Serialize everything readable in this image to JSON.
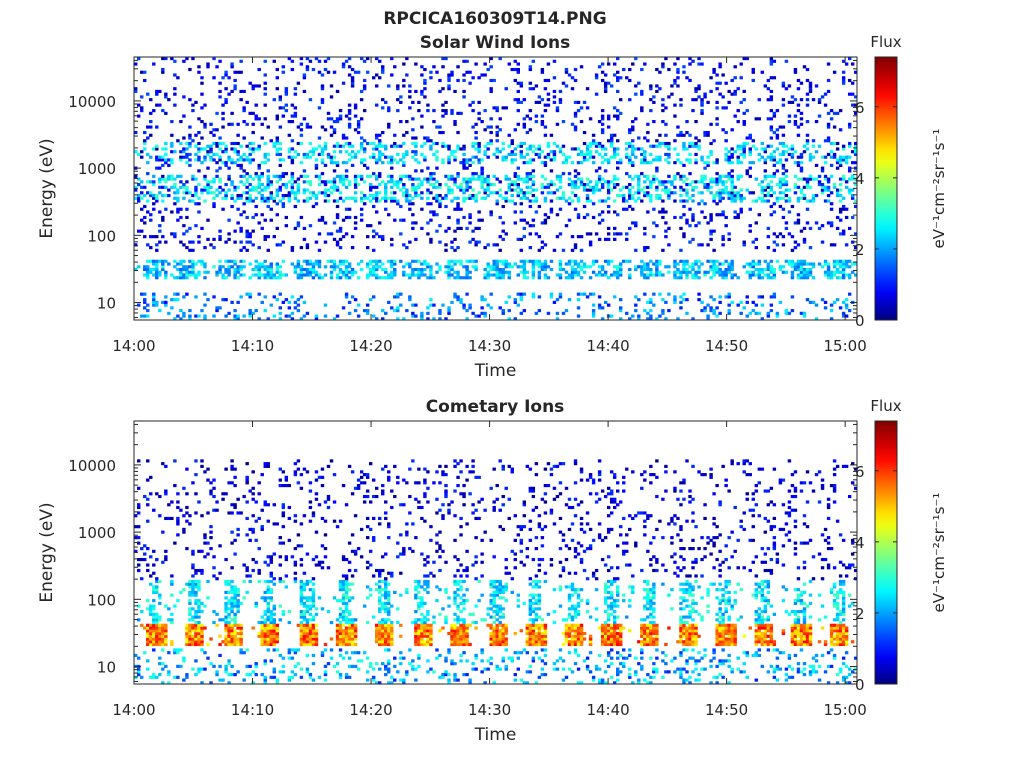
{
  "figure": {
    "title": "RPCICA160309T14.PNG"
  },
  "chart_data": [
    {
      "type": "heatmap",
      "title": "Solar Wind Ions",
      "xlabel": "Time",
      "ylabel": "Energy (eV)",
      "y_scale": "log",
      "xlim": [
        "14:00",
        "15:01"
      ],
      "ylim": [
        5.5,
        45000
      ],
      "x_ticks": [
        "14:00",
        "14:10",
        "14:20",
        "14:30",
        "14:40",
        "14:50",
        "15:00"
      ],
      "y_ticks": [
        10,
        100,
        1000,
        10000
      ],
      "y_tick_labels": [
        "10",
        "100",
        "1000",
        "10000"
      ],
      "colorbar": {
        "title": "Flux",
        "label": "eV⁻¹cm⁻²sr⁻¹s⁻¹",
        "range": [
          0,
          7.4
        ],
        "ticks": [
          0,
          2,
          4,
          6
        ],
        "tick_labels": [
          "0",
          "2",
          "4",
          "6"
        ]
      },
      "scan_period_minutes": 3.2,
      "bands": [
        {
          "energy_range": [
            22,
            42
          ],
          "flux_range": [
            1.5,
            3.0
          ],
          "occupancy": 0.55
        },
        {
          "energy_range": [
            300,
            800
          ],
          "flux_range": [
            2.0,
            3.2
          ],
          "occupancy": 0.3
        },
        {
          "energy_range": [
            1200,
            2500
          ],
          "flux_range": [
            2.0,
            3.0
          ],
          "occupancy": 0.25
        },
        {
          "energy_range": [
            60,
            45000
          ],
          "flux_range": [
            0.2,
            1.4
          ],
          "occupancy": 0.12
        },
        {
          "energy_range": [
            5.5,
            14
          ],
          "flux_range": [
            0.8,
            2.6
          ],
          "occupancy": 0.15
        }
      ]
    },
    {
      "type": "heatmap",
      "title": "Cometary Ions",
      "xlabel": "Time",
      "ylabel": "Energy (eV)",
      "y_scale": "log",
      "xlim": [
        "14:00",
        "15:01"
      ],
      "ylim": [
        5.5,
        45000
      ],
      "x_ticks": [
        "14:00",
        "14:10",
        "14:20",
        "14:30",
        "14:40",
        "14:50",
        "15:00"
      ],
      "y_ticks": [
        10,
        100,
        1000,
        10000
      ],
      "y_tick_labels": [
        "10",
        "100",
        "1000",
        "10000"
      ],
      "colorbar": {
        "title": "Flux",
        "label": "eV⁻¹cm⁻²sr⁻¹s⁻¹",
        "range": [
          0,
          7.4
        ],
        "ticks": [
          0,
          2,
          4,
          6
        ],
        "tick_labels": [
          "0",
          "2",
          "4",
          "6"
        ]
      },
      "scan_period_minutes": 3.2,
      "bands": [
        {
          "energy_range": [
            20,
            42
          ],
          "flux_range": [
            4.5,
            6.4
          ],
          "occupancy": 0.85
        },
        {
          "energy_range": [
            42,
            200
          ],
          "flux_range": [
            1.8,
            3.2
          ],
          "occupancy": 0.45
        },
        {
          "energy_range": [
            200,
            12000
          ],
          "flux_range": [
            0.1,
            1.2
          ],
          "occupancy": 0.1
        },
        {
          "energy_range": [
            5.5,
            18
          ],
          "flux_range": [
            1.0,
            3.0
          ],
          "occupancy": 0.18
        }
      ]
    }
  ]
}
